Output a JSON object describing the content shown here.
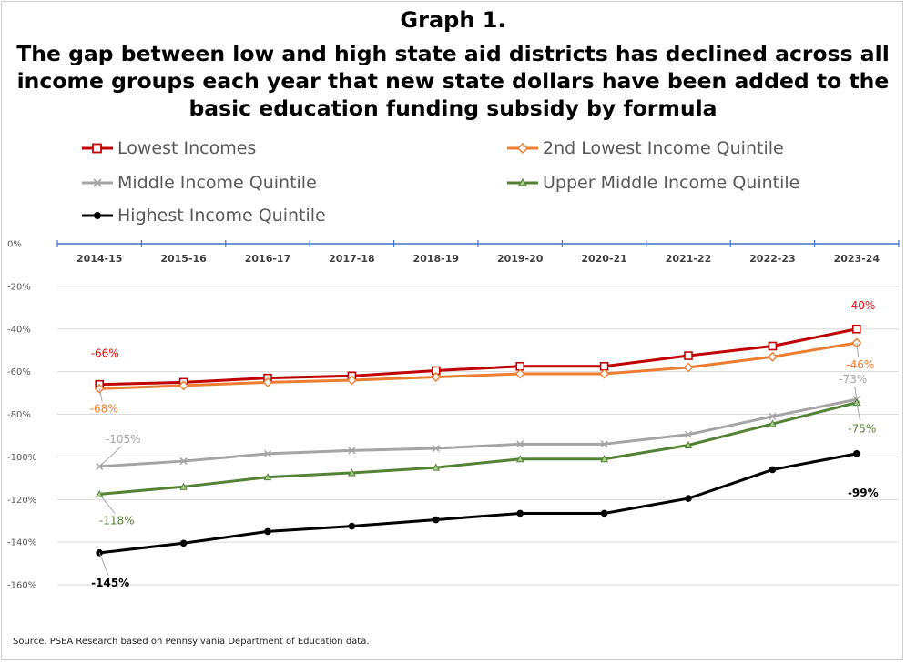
{
  "chart_data": {
    "type": "line",
    "title": "Graph 1.",
    "subtitle_lines": [
      "The gap between low and high state aid districts has declined across all",
      "income groups each year that new state dollars have been added to the",
      "basic education funding subsidy by formula"
    ],
    "categories": [
      "2014-15",
      "2015-16",
      "2016-17",
      "2017-18",
      "2018-19",
      "2019-20",
      "2020-21",
      "2021-22",
      "2022-23",
      "2023-24"
    ],
    "ylim": [
      -160,
      0
    ],
    "yticks": [
      {
        "value": 0,
        "label": "0%"
      },
      {
        "value": -20,
        "label": "-20%"
      },
      {
        "value": -40,
        "label": "-40%"
      },
      {
        "value": -60,
        "label": "-60%"
      },
      {
        "value": -80,
        "label": "-80%"
      },
      {
        "value": -100,
        "label": "-100%"
      },
      {
        "value": -120,
        "label": "-120%"
      },
      {
        "value": -140,
        "label": "-140%"
      },
      {
        "value": -160,
        "label": "-160%"
      }
    ],
    "grid": true,
    "legend_position": "top",
    "series": [
      {
        "name": "Lowest Incomes",
        "color": "#c00000",
        "marker": "square",
        "values": [
          -66,
          -65,
          -63,
          -62,
          -59.5,
          -57.5,
          -57.5,
          -52.5,
          -48,
          -40
        ],
        "labels": [
          {
            "index": 0,
            "text": "-66%"
          },
          {
            "index": 9,
            "text": "-40%"
          }
        ]
      },
      {
        "name": "2nd Lowest Income Quintile",
        "color": "#ed7d31",
        "marker": "diamond",
        "values": [
          -68,
          -66.5,
          -65,
          -64,
          -62.5,
          -61,
          -61,
          -58,
          -53,
          -46.5
        ],
        "labels": [
          {
            "index": 0,
            "text": "-68%"
          },
          {
            "index": 9,
            "text": "-46%"
          }
        ]
      },
      {
        "name": "Middle Income Quintile",
        "color": "#a5a5a5",
        "marker": "x",
        "values": [
          -104.5,
          -102,
          -98.5,
          -97,
          -96,
          -94,
          -94,
          -89.5,
          -81,
          -73
        ],
        "labels": [
          {
            "index": 0,
            "text": "-105%"
          },
          {
            "index": 9,
            "text": "-73%"
          }
        ]
      },
      {
        "name": "Upper Middle Income Quintile",
        "color": "#548235",
        "marker": "triangle",
        "values": [
          -117.5,
          -114,
          -109.5,
          -107.5,
          -105,
          -101,
          -101,
          -94.5,
          -84.5,
          -74.5
        ],
        "labels": [
          {
            "index": 0,
            "text": "-118%"
          },
          {
            "index": 9,
            "text": "-75%"
          }
        ]
      },
      {
        "name": "Highest Income Quintile",
        "color": "#000000",
        "marker": "circle",
        "values": [
          -145,
          -140.5,
          -135,
          -132.5,
          -129.5,
          -126.5,
          -126.5,
          -119.5,
          -106,
          -98.5
        ],
        "labels": [
          {
            "index": 0,
            "text": "-145%"
          },
          {
            "index": 9,
            "text": "-99%"
          }
        ]
      }
    ]
  },
  "source": "Source. PSEA Research based on Pennsylvania Department of Education data."
}
